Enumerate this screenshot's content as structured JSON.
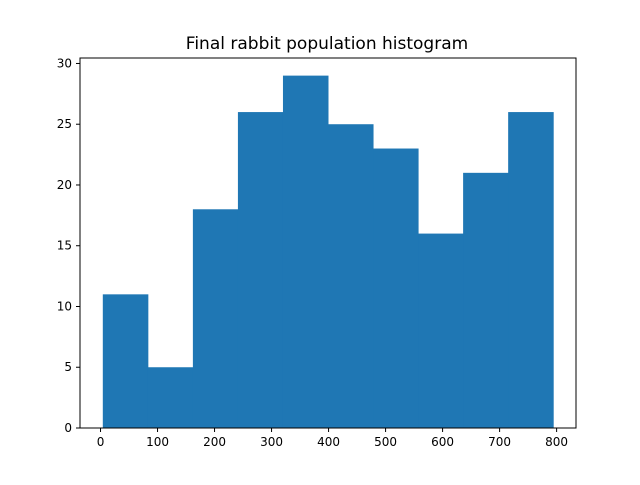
{
  "chart_data": {
    "type": "bar",
    "title": "Final rabbit population histogram",
    "xlabel": "",
    "ylabel": "",
    "bin_edges": [
      4,
      83,
      162,
      241,
      320,
      399,
      478,
      557,
      636,
      715,
      794
    ],
    "values": [
      11,
      5,
      18,
      26,
      29,
      25,
      23,
      16,
      21,
      26
    ],
    "xlim": [
      -36,
      834
    ],
    "ylim": [
      0,
      30.45
    ],
    "x_ticks": [
      0,
      100,
      200,
      300,
      400,
      500,
      600,
      700,
      800
    ],
    "y_ticks": [
      0,
      5,
      10,
      15,
      20,
      25,
      30
    ],
    "bar_color": "#1f77b4",
    "grid": false,
    "legend": "none"
  }
}
